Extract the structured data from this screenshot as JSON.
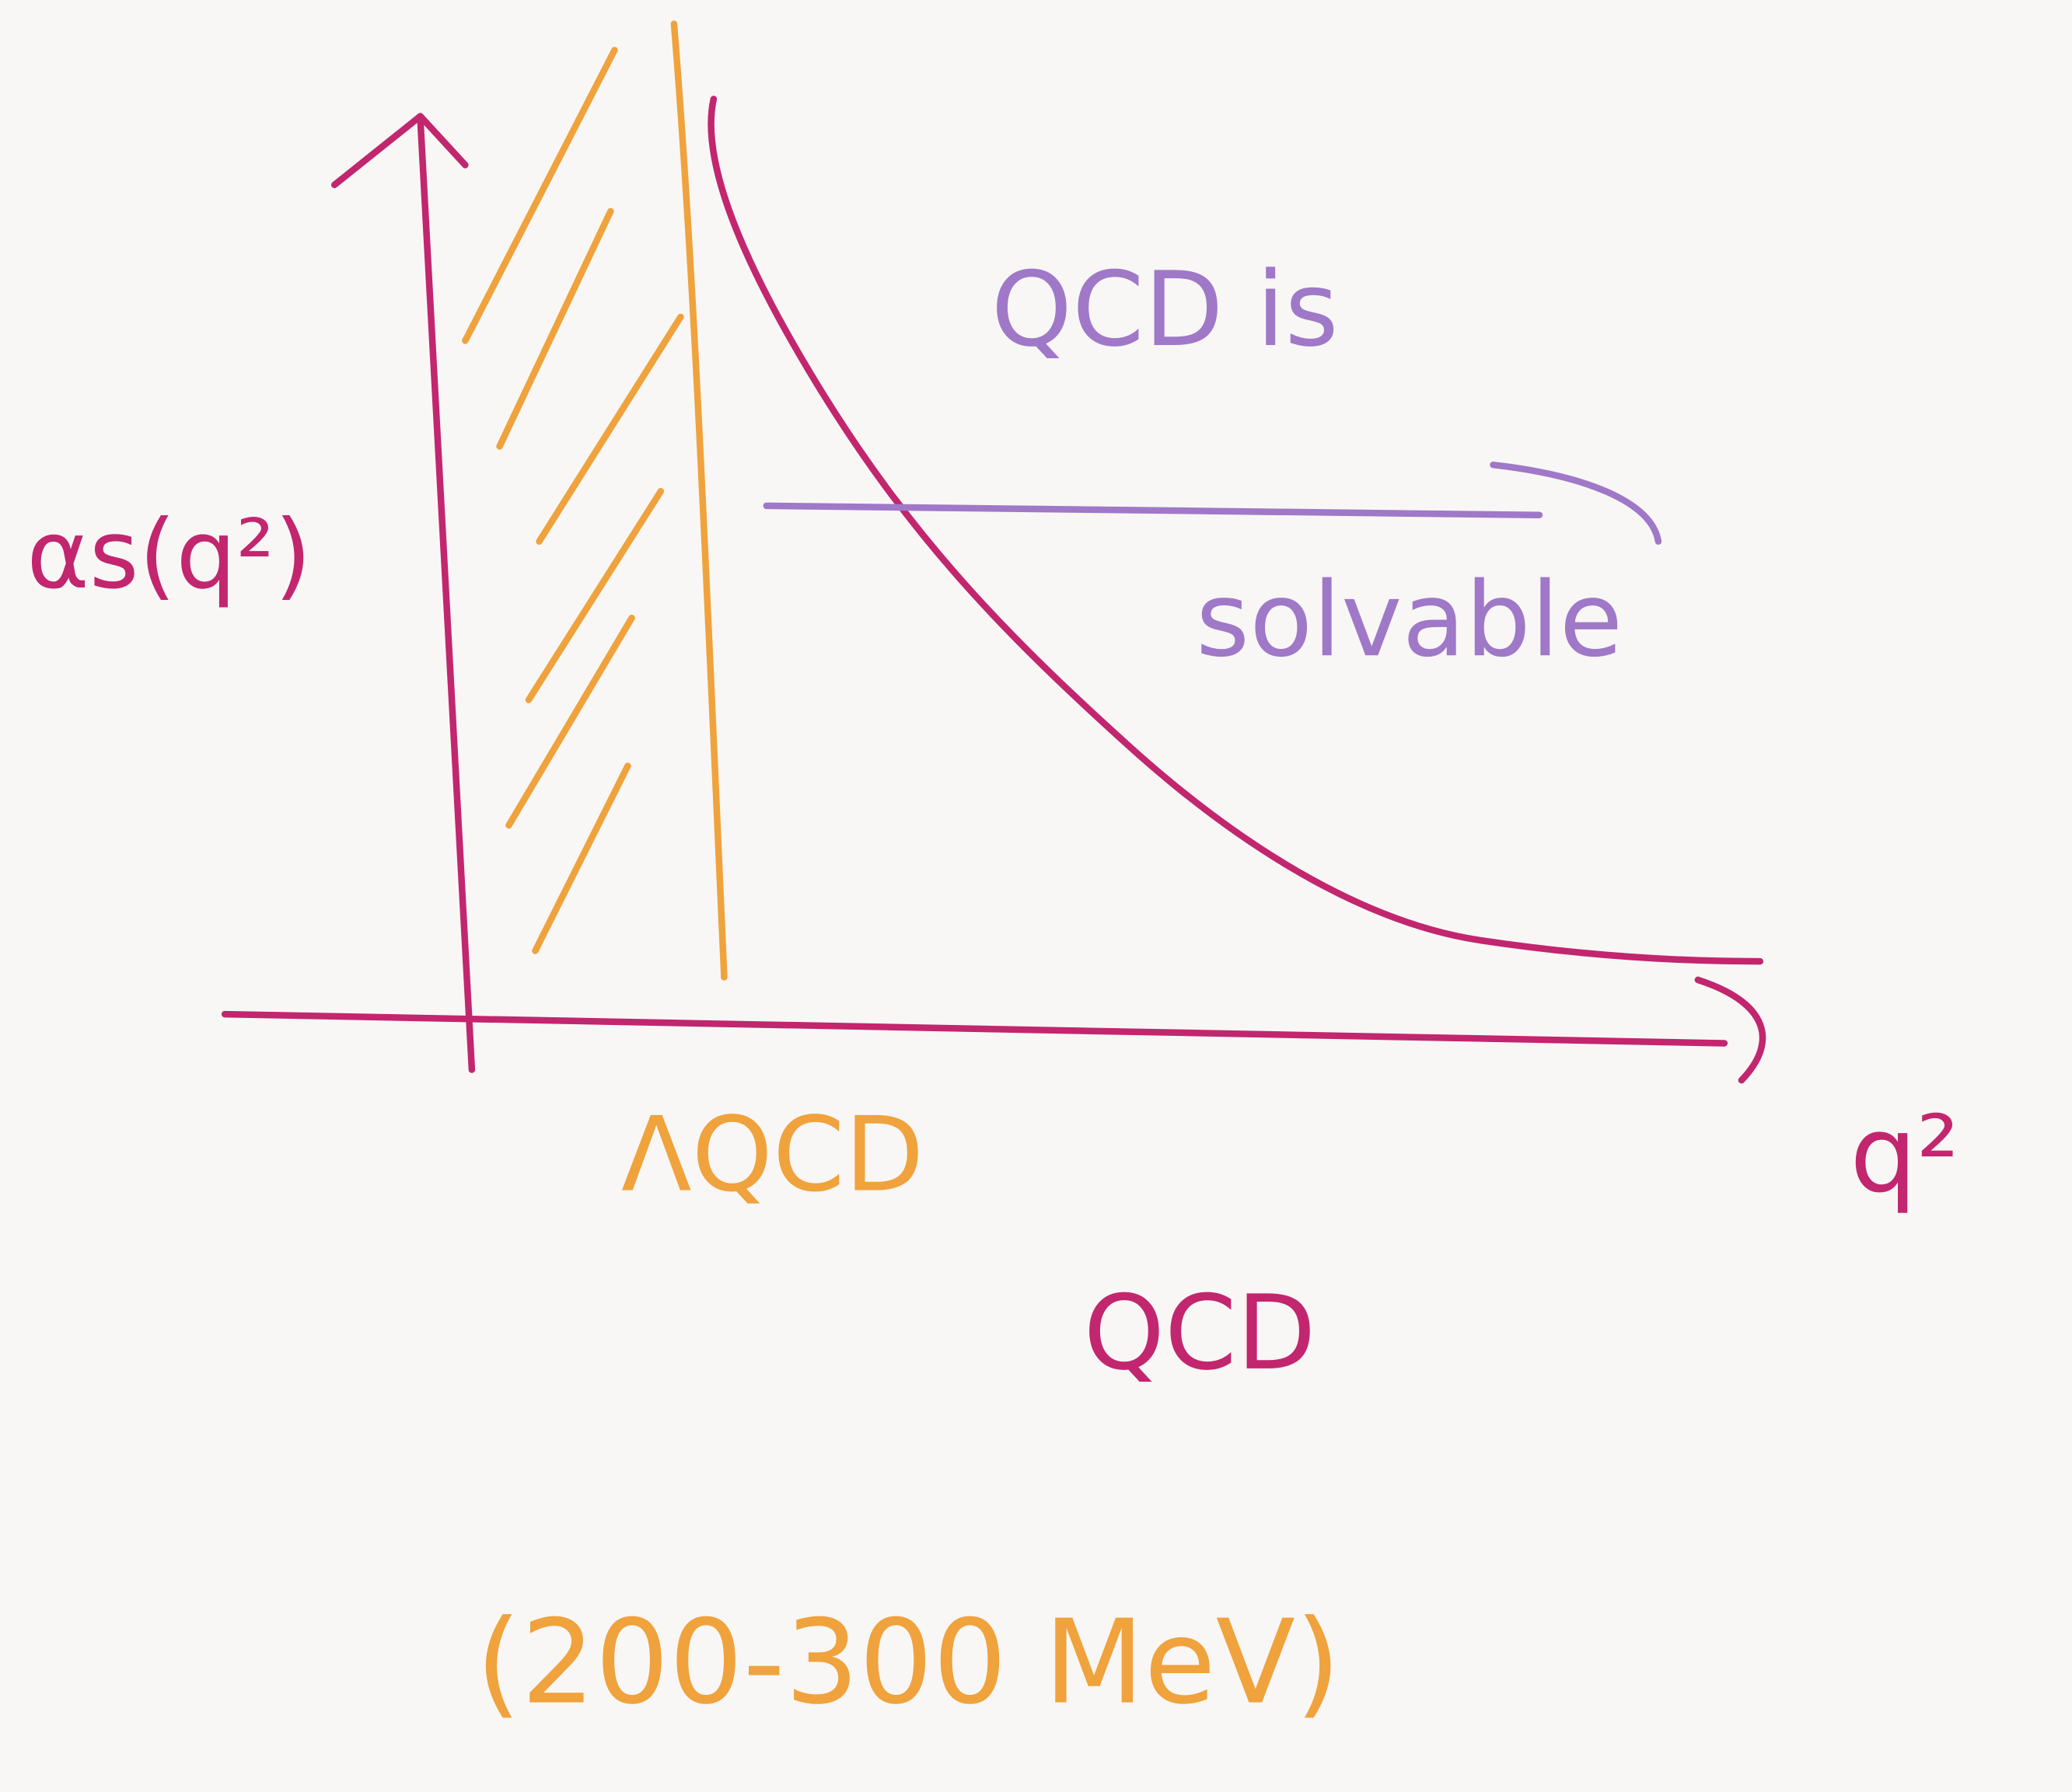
{
  "axes": {
    "y_label": "αs(q²)",
    "x_label": "q²"
  },
  "annotations": {
    "curve_note_line1": "QCD is",
    "curve_note_line2": "solvable",
    "region_label": "ΛQCD",
    "x_note": "QCD",
    "region_scale": "(200-300 MeV)"
  }
}
